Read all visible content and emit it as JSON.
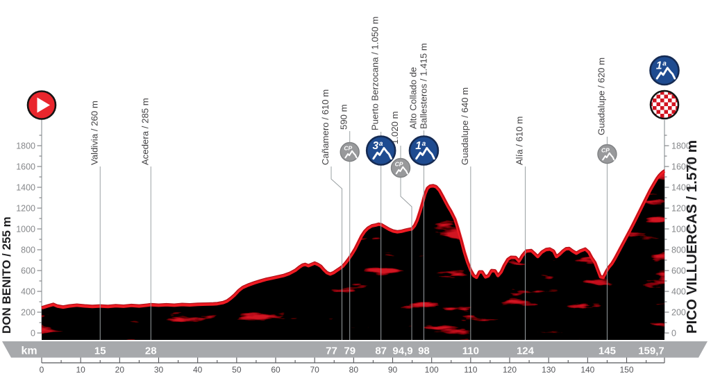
{
  "endpoints": {
    "start_label": "DON BENITO / 255 m",
    "finish_label": "PICO VILLUERCAS / 1.570 m"
  },
  "km_band": {
    "unit_label": "km",
    "values": [
      "15",
      "28",
      "77",
      "79",
      "87",
      "94,9",
      "98",
      "110",
      "124",
      "145",
      "159,7"
    ],
    "values_km": [
      15,
      28,
      77,
      79,
      87,
      94.9,
      98,
      110,
      124,
      145,
      159.7
    ]
  },
  "colors": {
    "profile_fill": "#d11420",
    "ridge_red": "#ee1b23",
    "ridge_dark": "#ad0d15",
    "category_blue": "#1e4b90",
    "category_blue_border": "#152a52",
    "cp_gray": "#98999b",
    "cp_gray_border": "#7f8183",
    "band_gray": "#a7a9ac",
    "marker_line": "#9aa0a3",
    "axis_text": "#85878a",
    "ruler_text": "#55565a",
    "label_text": "#414042",
    "endpoint_text": "#1d1d1f",
    "start_red": "#e9262d",
    "check_red": "#d21420",
    "icon_border_black": "#141414",
    "white": "#ffffff"
  },
  "chart_data": {
    "type": "area",
    "title": "Cycling stage elevation profile",
    "x_unit": "km",
    "y_unit": "m",
    "x_range": [
      0,
      159.7
    ],
    "grid": false,
    "y_axis": {
      "min": 0,
      "max": 1900,
      "major_step": 200,
      "minor_step": 100,
      "labels": [
        "0",
        "200",
        "400",
        "600",
        "800",
        "1000",
        "1200",
        "1400",
        "1600",
        "1800"
      ]
    },
    "x_ruler": {
      "major_step": 10,
      "minor_step": 5,
      "end_km": 159.7,
      "labels": [
        "0",
        "10",
        "20",
        "30",
        "40",
        "50",
        "60",
        "70",
        "80",
        "90",
        "100",
        "110",
        "120",
        "130",
        "140",
        "150"
      ]
    },
    "start": {
      "name": "Don Benito",
      "elevation_m": 255,
      "km": 0
    },
    "finish": {
      "name": "Pico Villuercas",
      "elevation_m": 1570,
      "km": 159.7,
      "category": "1ª"
    },
    "markers": [
      {
        "label_lines": [
          "Valdivia / 260 m"
        ],
        "km": 15,
        "icon": null
      },
      {
        "label_lines": [
          "Acedera / 285 m"
        ],
        "km": 28,
        "icon": null
      },
      {
        "label_lines": [
          "Cañamero / 610 m"
        ],
        "km": 77,
        "icon": null
      },
      {
        "label_lines": [
          "590 m"
        ],
        "km": 79,
        "icon": "cp",
        "icon_label": "CP"
      },
      {
        "label_lines": [
          "Puerto Berzocana / 1.050 m"
        ],
        "km": 87,
        "icon": "cat3",
        "icon_label": "3ª"
      },
      {
        "label_lines": [
          "1.020 m"
        ],
        "km": 94.9,
        "icon": "cp",
        "icon_label": "CP"
      },
      {
        "label_lines": [
          "Alto Collado de",
          "Ballesteros / 1.415 m"
        ],
        "km": 98,
        "icon": "cat1",
        "icon_label": "1ª"
      },
      {
        "label_lines": [
          "Guadalupe / 640 m"
        ],
        "km": 110,
        "icon": null
      },
      {
        "label_lines": [
          "Alía / 610 m"
        ],
        "km": 124,
        "icon": null
      },
      {
        "label_lines": [
          "Guadalupe / 620 m"
        ],
        "km": 145,
        "icon": "cp",
        "icon_label": "CP"
      }
    ],
    "finish_icons": [
      {
        "icon": "cat1",
        "icon_label": "1ª"
      },
      {
        "icon": "finish-checkered"
      }
    ],
    "profile": {
      "points": [
        [
          0,
          255
        ],
        [
          1.5,
          272
        ],
        [
          3,
          288
        ],
        [
          4,
          272
        ],
        [
          5.5,
          262
        ],
        [
          7,
          272
        ],
        [
          9,
          280
        ],
        [
          11,
          273
        ],
        [
          13,
          268
        ],
        [
          15,
          272
        ],
        [
          17,
          268
        ],
        [
          19,
          275
        ],
        [
          21,
          270
        ],
        [
          23,
          277
        ],
        [
          25,
          272
        ],
        [
          27,
          280
        ],
        [
          28,
          285
        ],
        [
          30,
          280
        ],
        [
          32,
          284
        ],
        [
          34,
          280
        ],
        [
          36,
          286
        ],
        [
          38,
          283
        ],
        [
          40,
          288
        ],
        [
          42,
          290
        ],
        [
          44,
          292
        ],
        [
          45,
          295
        ],
        [
          46.5,
          305
        ],
        [
          47.5,
          320
        ],
        [
          48.5,
          347
        ],
        [
          49.5,
          380
        ],
        [
          50.5,
          420
        ],
        [
          51.5,
          450
        ],
        [
          53,
          475
        ],
        [
          54.5,
          495
        ],
        [
          56,
          512
        ],
        [
          57.5,
          528
        ],
        [
          59,
          540
        ],
        [
          60.5,
          552
        ],
        [
          62,
          565
        ],
        [
          63.5,
          585
        ],
        [
          65,
          615
        ],
        [
          66,
          645
        ],
        [
          66.8,
          665
        ],
        [
          67.6,
          672
        ],
        [
          68.4,
          660
        ],
        [
          69.2,
          673
        ],
        [
          70,
          685
        ],
        [
          70.8,
          673
        ],
        [
          71.6,
          655
        ],
        [
          72.4,
          620
        ],
        [
          73.2,
          592
        ],
        [
          74,
          580
        ],
        [
          74.8,
          592
        ],
        [
          75.6,
          613
        ],
        [
          76.4,
          633
        ],
        [
          77.2,
          655
        ],
        [
          78,
          690
        ],
        [
          78.8,
          730
        ],
        [
          79.6,
          775
        ],
        [
          80.4,
          825
        ],
        [
          81.2,
          885
        ],
        [
          82,
          945
        ],
        [
          82.8,
          990
        ],
        [
          83.6,
          1020
        ],
        [
          84.6,
          1042
        ],
        [
          85.6,
          1050
        ],
        [
          86.4,
          1058
        ],
        [
          87.2,
          1052
        ],
        [
          88.2,
          1030
        ],
        [
          89.2,
          1008
        ],
        [
          90.2,
          992
        ],
        [
          91.2,
          985
        ],
        [
          92.2,
          990
        ],
        [
          93.2,
          1000
        ],
        [
          94.2,
          1008
        ],
        [
          94.9,
          1013
        ],
        [
          95.6,
          1045
        ],
        [
          96.3,
          1100
        ],
        [
          97,
          1180
        ],
        [
          97.7,
          1270
        ],
        [
          98.3,
          1350
        ],
        [
          98.9,
          1405
        ],
        [
          99.5,
          1423
        ],
        [
          100.4,
          1428
        ],
        [
          101.2,
          1418
        ],
        [
          102,
          1385
        ],
        [
          102.8,
          1330
        ],
        [
          103.5,
          1280
        ],
        [
          104.2,
          1230
        ],
        [
          105,
          1180
        ],
        [
          106,
          1105
        ],
        [
          106.8,
          1010
        ],
        [
          107.6,
          905
        ],
        [
          108.4,
          790
        ],
        [
          109.2,
          695
        ],
        [
          110,
          620
        ],
        [
          110.8,
          565
        ],
        [
          111.5,
          548
        ],
        [
          112.2,
          600
        ],
        [
          113,
          600
        ],
        [
          113.8,
          552
        ],
        [
          114.5,
          562
        ],
        [
          115.3,
          612
        ],
        [
          116.3,
          610
        ],
        [
          117,
          565
        ],
        [
          117.8,
          600
        ],
        [
          118.6,
          665
        ],
        [
          119.5,
          720
        ],
        [
          120.3,
          740
        ],
        [
          121.6,
          738
        ],
        [
          122.4,
          705
        ],
        [
          123.3,
          760
        ],
        [
          124.2,
          800
        ],
        [
          125.6,
          805
        ],
        [
          126.6,
          770
        ],
        [
          127.2,
          747
        ],
        [
          128.2,
          790
        ],
        [
          129.3,
          815
        ],
        [
          130.3,
          820
        ],
        [
          131.3,
          800
        ],
        [
          132,
          747
        ],
        [
          132.8,
          770
        ],
        [
          133.6,
          800
        ],
        [
          134.4,
          822
        ],
        [
          135.3,
          825
        ],
        [
          136.2,
          800
        ],
        [
          137.1,
          780
        ],
        [
          138,
          800
        ],
        [
          139.4,
          820
        ],
        [
          140.3,
          790
        ],
        [
          141,
          740
        ],
        [
          141.9,
          690
        ],
        [
          142.6,
          620
        ],
        [
          143.3,
          553
        ],
        [
          144,
          548
        ],
        [
          144.7,
          600
        ],
        [
          145.3,
          640
        ],
        [
          146.2,
          680
        ],
        [
          147,
          730
        ],
        [
          148,
          800
        ],
        [
          149,
          870
        ],
        [
          150,
          940
        ],
        [
          151,
          1010
        ],
        [
          152,
          1085
        ],
        [
          153,
          1160
        ],
        [
          154,
          1235
        ],
        [
          155,
          1310
        ],
        [
          156,
          1385
        ],
        [
          157,
          1450
        ],
        [
          157.8,
          1500
        ],
        [
          158.4,
          1530
        ],
        [
          159,
          1552
        ],
        [
          159.4,
          1564
        ],
        [
          159.7,
          1570
        ]
      ]
    }
  }
}
